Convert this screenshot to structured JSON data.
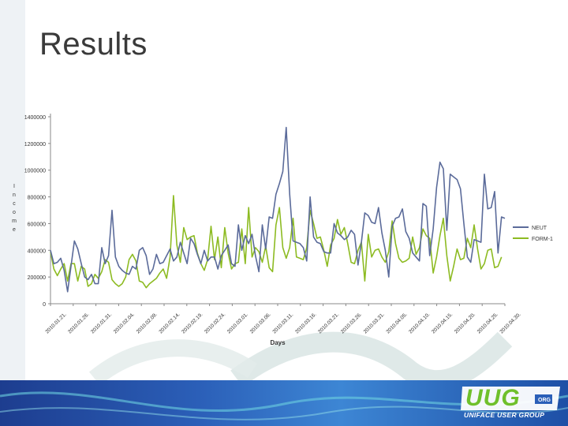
{
  "slide": {
    "title": "Results"
  },
  "logo": {
    "main": "UUG",
    "org": "ORG",
    "subtitle": "UNIFACE USER GROUP"
  },
  "colors": {
    "series_a": "#5b6b9a",
    "series_b": "#8dbb22",
    "footer": "#2b5fb8",
    "logo_green": "#6fc02c"
  },
  "chart_data": {
    "type": "line",
    "title": "",
    "xlabel": "Days",
    "ylabel": "Income",
    "ylabel_letters": [
      "I",
      "n",
      "c",
      "o",
      "m",
      "e"
    ],
    "ylim": [
      0,
      1400000
    ],
    "yticks": [
      "0",
      "200000",
      "400000",
      "600000",
      "800000",
      "1000000",
      "1200000",
      "1400000"
    ],
    "x_tick_labels": [
      "2010.01.21.",
      "2010.01.26.",
      "2010.01.31.",
      "2010.02.04.",
      "2010.02.09.",
      "2010.02.14.",
      "2010.02.19.",
      "2010.02.24.",
      "2010.03.01.",
      "2010.03.06.",
      "2010.03.11.",
      "2010.03.16.",
      "2010.03.21.",
      "2010.03.26.",
      "2010.03.31.",
      "2010.04.05.",
      "2010.04.10.",
      "2010.04.15.",
      "2010.04.20.",
      "2010.04.25.",
      "2010.04.30."
    ],
    "legend_position": "right",
    "grid": false,
    "series": [
      {
        "name": "NEUT",
        "values": [
          400000,
          300000,
          310000,
          340000,
          250000,
          90000,
          280000,
          470000,
          410000,
          300000,
          200000,
          180000,
          220000,
          150000,
          150000,
          420000,
          300000,
          360000,
          700000,
          350000,
          280000,
          250000,
          230000,
          220000,
          280000,
          260000,
          400000,
          420000,
          360000,
          220000,
          260000,
          370000,
          300000,
          310000,
          360000,
          410000,
          320000,
          350000,
          460000,
          380000,
          300000,
          490000,
          450000,
          370000,
          300000,
          400000,
          320000,
          350000,
          350000,
          260000,
          360000,
          400000,
          440000,
          300000,
          280000,
          590000,
          400000,
          510000,
          450000,
          520000,
          360000,
          240000,
          590000,
          410000,
          650000,
          640000,
          820000,
          900000,
          990000,
          1320000,
          820000,
          470000,
          460000,
          450000,
          420000,
          320000,
          800000,
          500000,
          460000,
          450000,
          390000,
          380000,
          380000,
          600000,
          530000,
          510000,
          480000,
          500000,
          550000,
          520000,
          290000,
          460000,
          680000,
          660000,
          610000,
          600000,
          720000,
          530000,
          400000,
          200000,
          580000,
          640000,
          650000,
          710000,
          540000,
          490000,
          380000,
          350000,
          320000,
          750000,
          730000,
          360000,
          560000,
          870000,
          1060000,
          1010000,
          550000,
          970000,
          950000,
          930000,
          860000,
          600000,
          350000,
          310000,
          480000,
          470000,
          460000,
          970000,
          710000,
          720000,
          840000,
          380000,
          650000,
          640000
        ]
      },
      {
        "name": "FORM-1",
        "values": [
          390000,
          260000,
          210000,
          260000,
          300000,
          170000,
          300000,
          300000,
          170000,
          280000,
          260000,
          130000,
          150000,
          220000,
          190000,
          240000,
          330000,
          310000,
          180000,
          150000,
          130000,
          150000,
          200000,
          330000,
          370000,
          320000,
          170000,
          160000,
          120000,
          150000,
          170000,
          190000,
          230000,
          260000,
          190000,
          350000,
          810000,
          440000,
          310000,
          570000,
          480000,
          500000,
          510000,
          380000,
          300000,
          250000,
          330000,
          580000,
          330000,
          500000,
          270000,
          570000,
          380000,
          260000,
          300000,
          310000,
          560000,
          300000,
          720000,
          350000,
          420000,
          390000,
          310000,
          430000,
          270000,
          240000,
          590000,
          720000,
          420000,
          340000,
          420000,
          640000,
          350000,
          340000,
          330000,
          420000,
          700000,
          600000,
          490000,
          500000,
          400000,
          280000,
          440000,
          490000,
          630000,
          520000,
          570000,
          450000,
          310000,
          300000,
          400000,
          460000,
          170000,
          520000,
          350000,
          400000,
          410000,
          350000,
          310000,
          390000,
          620000,
          450000,
          340000,
          310000,
          320000,
          340000,
          500000,
          370000,
          420000,
          560000,
          510000,
          490000,
          230000,
          350000,
          510000,
          640000,
          360000,
          170000,
          280000,
          410000,
          330000,
          340000,
          490000,
          420000,
          590000,
          410000,
          260000,
          300000,
          400000,
          410000,
          270000,
          280000,
          350000
        ]
      }
    ]
  }
}
